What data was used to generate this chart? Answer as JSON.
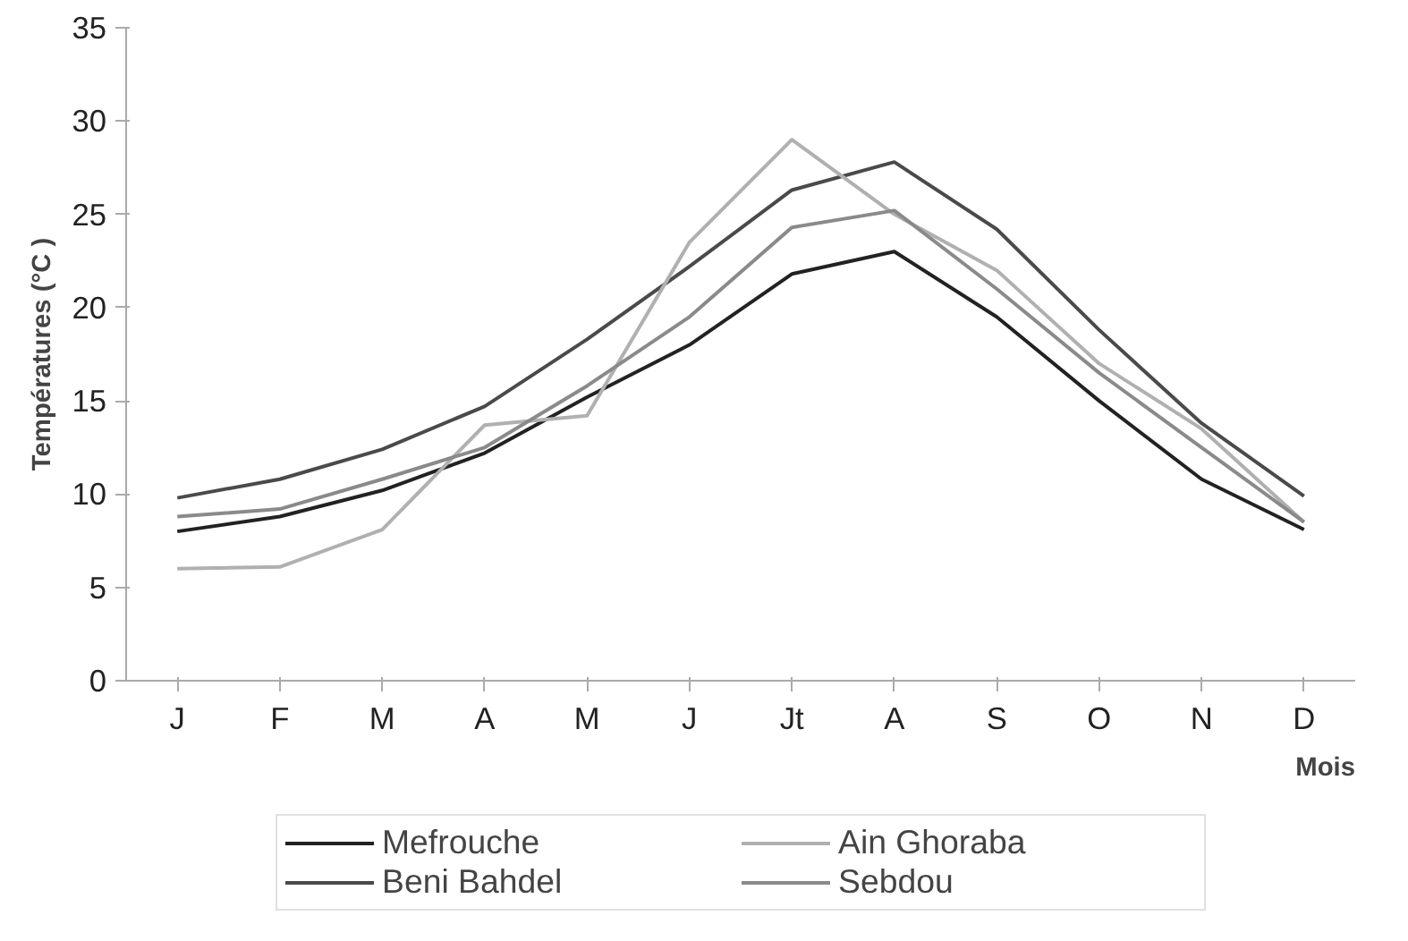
{
  "chart_data": {
    "type": "line",
    "xlabel": "Mois",
    "ylabel": "Températures (°C )",
    "categories": [
      "J",
      "F",
      "M",
      "A",
      "M",
      "J",
      "Jt",
      "A",
      "S",
      "O",
      "N",
      "D"
    ],
    "series": [
      {
        "name": "Mefrouche",
        "color": "#222222",
        "values": [
          8,
          8.8,
          10.2,
          12.2,
          15.2,
          18,
          21.8,
          23,
          19.5,
          15,
          10.8,
          8.1
        ]
      },
      {
        "name": "Beni Bahdel",
        "color": "#4a4a4a",
        "values": [
          9.8,
          10.8,
          12.4,
          14.7,
          18.3,
          22.2,
          26.3,
          27.8,
          24.2,
          18.8,
          13.8,
          9.9
        ]
      },
      {
        "name": "Ain Ghoraba",
        "color": "#b0b0b0",
        "values": [
          6,
          6.1,
          8.1,
          13.7,
          14.2,
          23.5,
          29,
          25,
          22,
          17,
          13.5,
          8.5
        ]
      },
      {
        "name": "Sebdou",
        "color": "#8a8a8a",
        "values": [
          8.8,
          9.2,
          10.8,
          12.5,
          15.8,
          19.5,
          24.3,
          25.2,
          21,
          16.5,
          12.5,
          8.5
        ]
      }
    ],
    "ylim": [
      0,
      35
    ],
    "yticks": [
      0,
      5,
      10,
      15,
      20,
      25,
      30,
      35
    ],
    "grid": false,
    "legend": "bottom"
  }
}
